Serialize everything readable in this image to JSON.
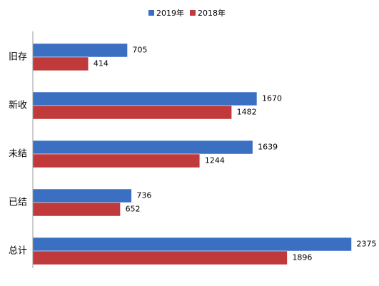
{
  "chart_data": {
    "type": "hbar",
    "categories": [
      "旧存",
      "新收",
      "未结",
      "已结",
      "总计"
    ],
    "series": [
      {
        "name": "2019年",
        "color": "#3b6fc2",
        "values": [
          705,
          1670,
          1639,
          736,
          2375
        ]
      },
      {
        "name": "2018年",
        "color": "#c0393b",
        "values": [
          414,
          1482,
          1244,
          652,
          1896
        ]
      }
    ],
    "xlim": [
      0,
      2500
    ]
  }
}
